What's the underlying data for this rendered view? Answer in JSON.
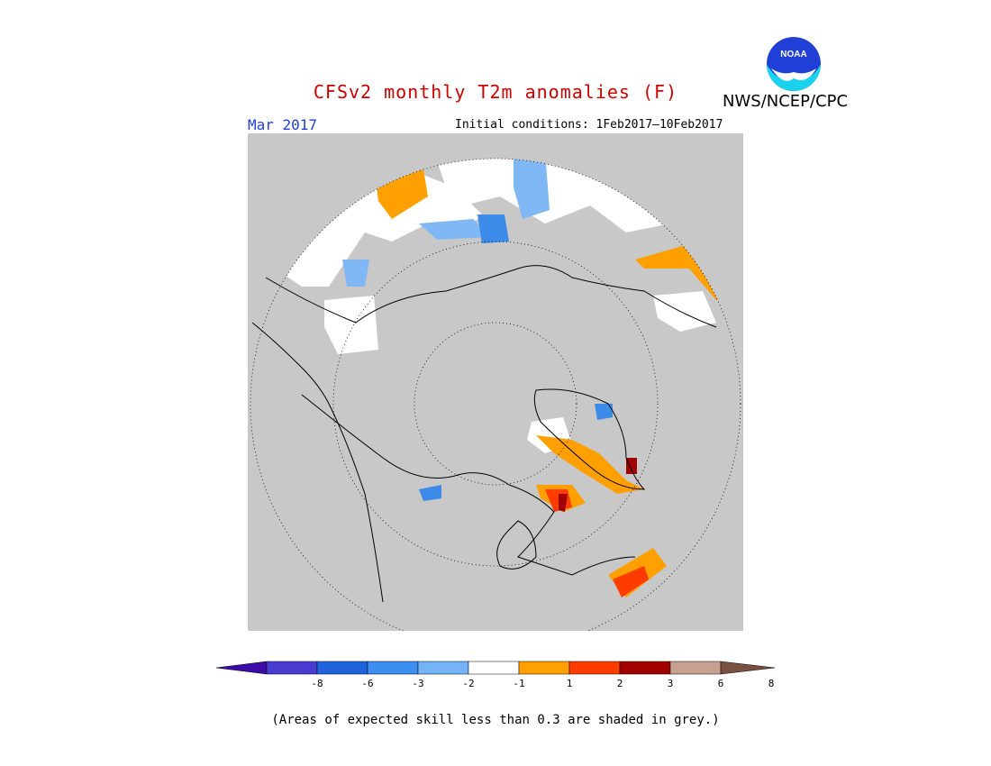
{
  "header": {
    "title": "CFSv2 monthly T2m anomalies (F)",
    "org": "NWS/NCEP/CPC",
    "logo_text": "NOAA",
    "month": "Mar 2017",
    "initial_conditions": "Initial conditions: 1Feb2017–10Feb2017"
  },
  "colors": {
    "title": "#cc0000",
    "month": "#1f3fd6",
    "map_background": "#c8c8c8",
    "skill_grey": "#c8c8c8",
    "no_anomaly": "#ffffff",
    "cold_light": "#7fb8f5",
    "cold_mid": "#3d8be8",
    "warm_light": "#ff9f00",
    "warm_mid": "#ff3c00",
    "warm_dark": "#a00000"
  },
  "colorbar": {
    "ticks": [
      "-8",
      "-6",
      "-3",
      "-2",
      "-1",
      "1",
      "2",
      "3",
      "6",
      "8"
    ],
    "bins": [
      {
        "color": "#3d0ca8"
      },
      {
        "color": "#4a3cd0"
      },
      {
        "color": "#1f64dc"
      },
      {
        "color": "#3c8ef0"
      },
      {
        "color": "#74b4f6"
      },
      {
        "color": "#ffffff"
      },
      {
        "color": "#ff9f00"
      },
      {
        "color": "#ff3c00"
      },
      {
        "color": "#a00000"
      },
      {
        "color": "#c8a090"
      },
      {
        "color": "#7a5040"
      }
    ]
  },
  "footnote": "(Areas of expected skill less than 0.3 are shaded in grey.)"
}
